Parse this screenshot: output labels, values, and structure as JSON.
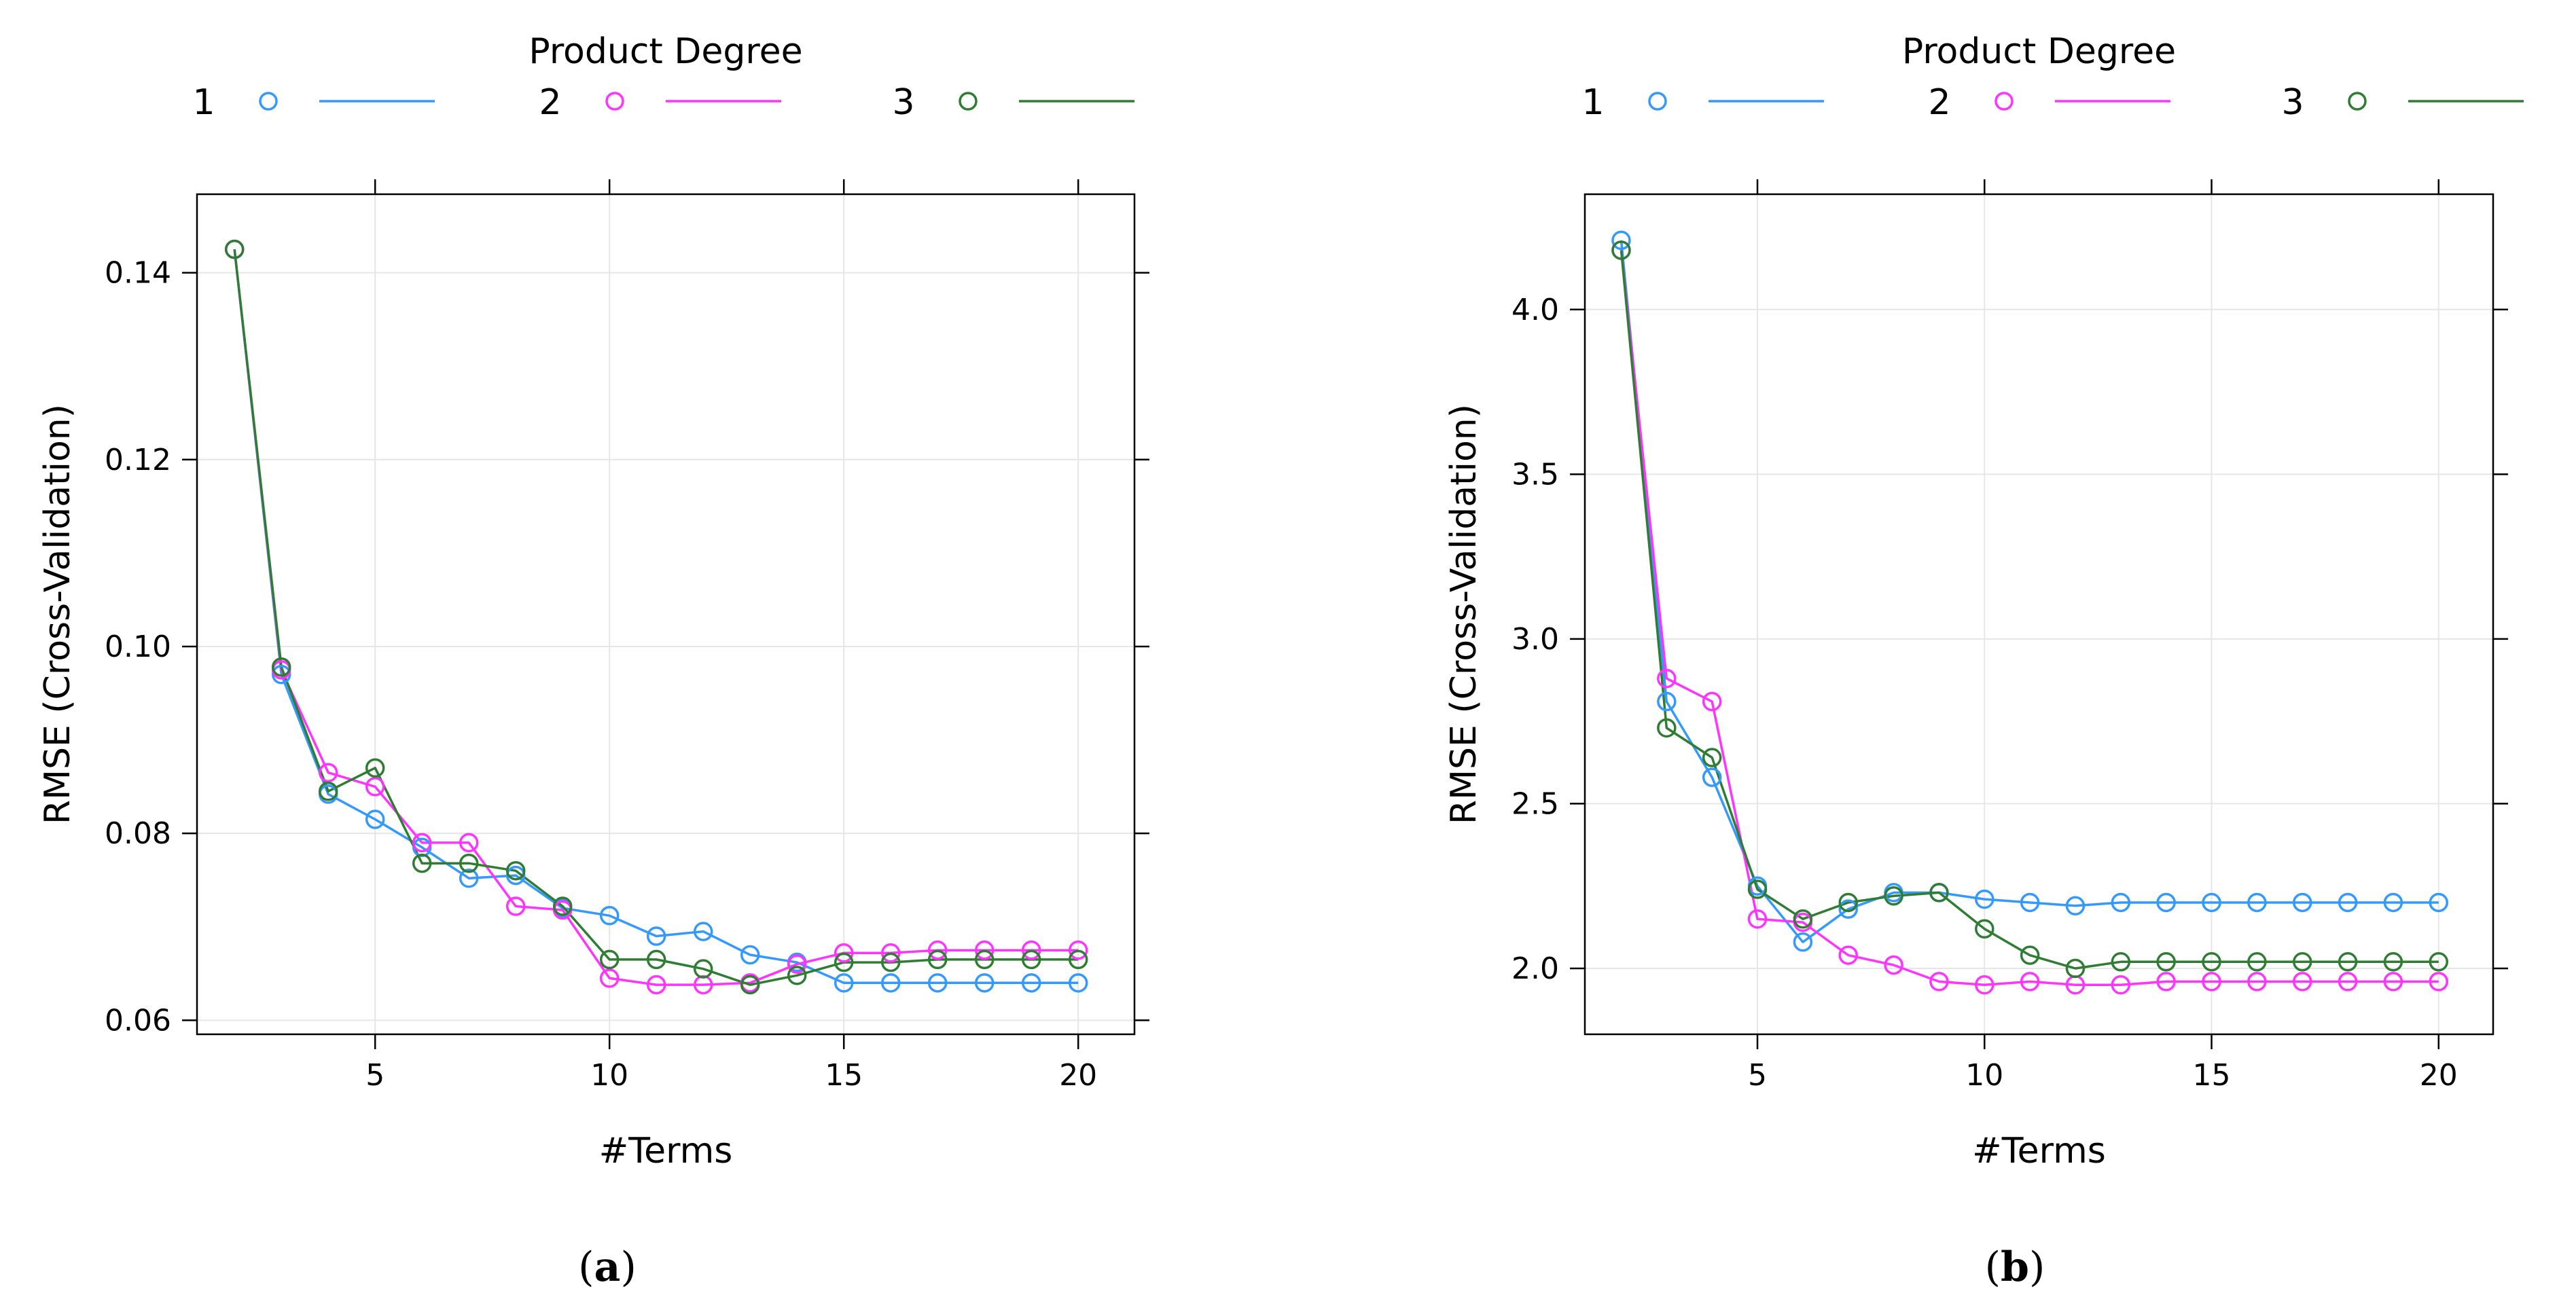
{
  "chart_data": [
    {
      "type": "line",
      "panel_label": "a",
      "legend_title": "Product Degree",
      "legend_position": "top",
      "xlabel": "#Terms",
      "ylabel": "RMSE (Cross-Validation)",
      "xlim": [
        1.2,
        21.2
      ],
      "ylim": [
        0.0585,
        0.1484
      ],
      "xticks": [
        5,
        10,
        15,
        20
      ],
      "xtick_labels": [
        "5",
        "10",
        "15",
        "20"
      ],
      "yticks": [
        0.06,
        0.08,
        0.1,
        0.12,
        0.14
      ],
      "ytick_labels": [
        "0.06",
        "0.08",
        "0.10",
        "0.12",
        "0.14"
      ],
      "grid": true,
      "x": [
        2,
        3,
        4,
        5,
        6,
        7,
        8,
        9,
        10,
        11,
        12,
        13,
        14,
        15,
        16,
        17,
        18,
        19,
        20
      ],
      "series": [
        {
          "name": "1",
          "color": "#3399ff",
          "values": [
            0.1425,
            0.097,
            0.0842,
            0.0815,
            0.0785,
            0.0752,
            0.0755,
            0.072,
            0.0712,
            0.069,
            0.0695,
            0.067,
            0.0662,
            0.064,
            0.064,
            0.064,
            0.064,
            0.064,
            0.064
          ]
        },
        {
          "name": "2",
          "color": "#ff33ff",
          "values": [
            0.1425,
            0.0975,
            0.0865,
            0.085,
            0.079,
            0.079,
            0.0722,
            0.0718,
            0.0645,
            0.0638,
            0.0638,
            0.064,
            0.066,
            0.0672,
            0.0672,
            0.0675,
            0.0675,
            0.0675,
            0.0675
          ]
        },
        {
          "name": "3",
          "color": "#2e7d32",
          "values": [
            0.1425,
            0.0978,
            0.0845,
            0.087,
            0.0768,
            0.0768,
            0.076,
            0.0722,
            0.0665,
            0.0665,
            0.0655,
            0.0638,
            0.0648,
            0.0662,
            0.0662,
            0.0665,
            0.0665,
            0.0665,
            0.0665
          ]
        }
      ]
    },
    {
      "type": "line",
      "panel_label": "b",
      "legend_title": "Product Degree",
      "legend_position": "top",
      "xlabel": "#Terms",
      "ylabel": "RMSE (Cross-Validation)",
      "xlim": [
        1.2,
        21.2
      ],
      "ylim": [
        1.8,
        4.35
      ],
      "xticks": [
        5,
        10,
        15,
        20
      ],
      "xtick_labels": [
        "5",
        "10",
        "15",
        "20"
      ],
      "yticks": [
        2.0,
        2.5,
        3.0,
        3.5,
        4.0
      ],
      "ytick_labels": [
        "2.0",
        "2.5",
        "3.0",
        "3.5",
        "4.0"
      ],
      "grid": true,
      "x": [
        2,
        3,
        4,
        5,
        6,
        7,
        8,
        9,
        10,
        11,
        12,
        13,
        14,
        15,
        16,
        17,
        18,
        19,
        20
      ],
      "series": [
        {
          "name": "1",
          "color": "#3399ff",
          "values": [
            4.21,
            2.81,
            2.58,
            2.25,
            2.08,
            2.18,
            2.23,
            2.23,
            2.21,
            2.2,
            2.19,
            2.2,
            2.2,
            2.2,
            2.2,
            2.2,
            2.2,
            2.2,
            2.2
          ]
        },
        {
          "name": "2",
          "color": "#ff33ff",
          "values": [
            4.18,
            2.88,
            2.81,
            2.15,
            2.14,
            2.04,
            2.01,
            1.96,
            1.95,
            1.96,
            1.95,
            1.95,
            1.96,
            1.96,
            1.96,
            1.96,
            1.96,
            1.96,
            1.96
          ]
        },
        {
          "name": "3",
          "color": "#2e7d32",
          "values": [
            4.18,
            2.73,
            2.64,
            2.24,
            2.15,
            2.2,
            2.22,
            2.23,
            2.12,
            2.04,
            2.0,
            2.02,
            2.02,
            2.02,
            2.02,
            2.02,
            2.02,
            2.02,
            2.02
          ]
        }
      ]
    }
  ]
}
